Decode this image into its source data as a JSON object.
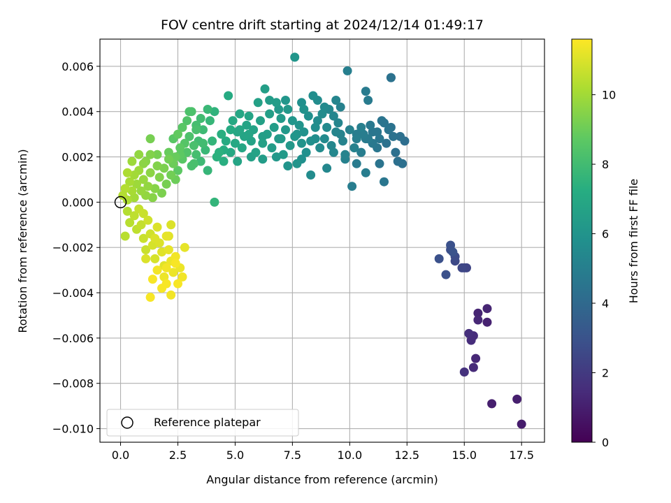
{
  "chart_data": {
    "type": "scatter",
    "title": "FOV centre drift starting at 2024/12/14 01:49:17",
    "xlabel": "Angular distance from reference (arcmin)",
    "ylabel": "Rotation from reference (arcmin)",
    "xlim": [
      -0.9,
      18.5
    ],
    "ylim": [
      -0.0106,
      0.0072
    ],
    "xticks": [
      0.0,
      2.5,
      5.0,
      7.5,
      10.0,
      12.5,
      15.0,
      17.5
    ],
    "xtick_labels": [
      "0.0",
      "2.5",
      "5.0",
      "7.5",
      "10.0",
      "12.5",
      "15.0",
      "17.5"
    ],
    "yticks": [
      0.006,
      0.004,
      0.002,
      0.0,
      -0.002,
      -0.004,
      -0.006,
      -0.008,
      -0.01
    ],
    "ytick_labels": [
      "0.006",
      "0.004",
      "0.002",
      "0.000",
      "−0.002",
      "−0.004",
      "−0.006",
      "−0.008",
      "−0.010"
    ],
    "grid": true,
    "colormap": "viridis",
    "colorbar": {
      "label": "Hours from first FF file",
      "range": [
        0,
        11.6
      ],
      "ticks": [
        0,
        2,
        4,
        6,
        8,
        10
      ],
      "tick_labels": [
        "0",
        "2",
        "4",
        "6",
        "8",
        "10"
      ]
    },
    "reference": {
      "x": 0.0,
      "y": 0.0,
      "label": "Reference platepar"
    },
    "legend_placement": "lower-left",
    "points": [
      [
        17.5,
        -0.0098,
        0.9
      ],
      [
        17.3,
        -0.0087,
        1.0
      ],
      [
        16.2,
        -0.0089,
        1.0
      ],
      [
        16.0,
        -0.0053,
        1.1
      ],
      [
        16.0,
        -0.0047,
        1.2
      ],
      [
        15.6,
        -0.0049,
        1.2
      ],
      [
        15.6,
        -0.0052,
        1.3
      ],
      [
        15.5,
        -0.0069,
        1.3
      ],
      [
        15.4,
        -0.0073,
        1.4
      ],
      [
        15.4,
        -0.0059,
        1.5
      ],
      [
        15.3,
        -0.0061,
        1.5
      ],
      [
        15.2,
        -0.0058,
        1.6
      ],
      [
        15.0,
        -0.0075,
        1.7
      ],
      [
        15.0,
        -0.0029,
        2.4
      ],
      [
        15.1,
        -0.0029,
        2.4
      ],
      [
        14.9,
        -0.0029,
        2.5
      ],
      [
        14.6,
        -0.0026,
        2.6
      ],
      [
        14.6,
        -0.0024,
        2.7
      ],
      [
        14.4,
        -0.0021,
        2.8
      ],
      [
        14.4,
        -0.0019,
        2.9
      ],
      [
        14.2,
        -0.0032,
        2.9
      ],
      [
        13.9,
        -0.0025,
        2.9
      ],
      [
        14.5,
        -0.0022,
        3.0
      ],
      [
        12.4,
        0.0027,
        4.2
      ],
      [
        12.2,
        0.0029,
        4.3
      ],
      [
        12.3,
        0.0017,
        4.3
      ],
      [
        12.1,
        0.0018,
        4.3
      ],
      [
        11.9,
        0.0029,
        4.4
      ],
      [
        11.8,
        0.0055,
        4.4
      ],
      [
        11.8,
        0.0055,
        4.4
      ],
      [
        11.7,
        0.0032,
        4.5
      ],
      [
        11.5,
        0.0035,
        4.5
      ],
      [
        11.4,
        0.0036,
        4.5
      ],
      [
        11.3,
        0.0028,
        4.6
      ],
      [
        11.2,
        0.0024,
        4.6
      ],
      [
        11.0,
        0.0031,
        4.6
      ],
      [
        11.0,
        0.0026,
        4.7
      ],
      [
        10.9,
        0.0034,
        4.7
      ],
      [
        10.8,
        0.0028,
        4.8
      ],
      [
        10.8,
        0.0045,
        4.8
      ],
      [
        10.7,
        0.0049,
        4.8
      ],
      [
        10.5,
        0.0022,
        4.9
      ],
      [
        10.6,
        0.003,
        4.9
      ],
      [
        11.5,
        0.0009,
        4.6
      ],
      [
        11.3,
        0.0017,
        4.5
      ],
      [
        10.1,
        0.0007,
        4.9
      ],
      [
        10.3,
        0.0017,
        4.8
      ],
      [
        10.7,
        0.0013,
        4.9
      ],
      [
        10.5,
        0.0033,
        5.0
      ],
      [
        10.3,
        0.0028,
        5.0
      ],
      [
        10.2,
        0.0024,
        5.1
      ],
      [
        10.0,
        0.0032,
        5.1
      ],
      [
        9.9,
        0.0058,
        5.0
      ],
      [
        9.8,
        0.0021,
        5.2
      ],
      [
        9.7,
        0.0027,
        5.2
      ],
      [
        9.6,
        0.003,
        5.2
      ],
      [
        9.5,
        0.0035,
        5.3
      ],
      [
        9.4,
        0.0045,
        5.3
      ],
      [
        9.3,
        0.0022,
        5.4
      ],
      [
        9.2,
        0.0025,
        5.4
      ],
      [
        9.1,
        0.0041,
        5.4
      ],
      [
        9.0,
        0.0033,
        5.5
      ],
      [
        8.9,
        0.0028,
        5.5
      ],
      [
        8.8,
        0.0039,
        5.6
      ],
      [
        8.7,
        0.0024,
        5.6
      ],
      [
        8.6,
        0.0045,
        5.6
      ],
      [
        8.5,
        0.0033,
        5.7
      ],
      [
        8.4,
        0.0047,
        5.7
      ],
      [
        8.3,
        0.0027,
        5.8
      ],
      [
        8.2,
        0.0038,
        5.8
      ],
      [
        8.1,
        0.0022,
        5.8
      ],
      [
        8.0,
        0.0041,
        5.9
      ],
      [
        8.0,
        0.0031,
        5.9
      ],
      [
        7.9,
        0.0026,
        6.0
      ],
      [
        7.8,
        0.0034,
        6.0
      ],
      [
        7.7,
        0.0017,
        6.0
      ],
      [
        7.6,
        0.0064,
        6.1
      ],
      [
        7.6,
        0.0029,
        6.1
      ],
      [
        7.5,
        0.0036,
        6.1
      ],
      [
        7.4,
        0.0025,
        6.2
      ],
      [
        7.3,
        0.0041,
        6.2
      ],
      [
        7.2,
        0.0032,
        6.2
      ],
      [
        7.1,
        0.0021,
        6.3
      ],
      [
        7.0,
        0.0037,
        6.3
      ],
      [
        6.9,
        0.0028,
        6.3
      ],
      [
        6.8,
        0.0044,
        6.4
      ],
      [
        6.7,
        0.0033,
        6.4
      ],
      [
        6.6,
        0.0024,
        6.4
      ],
      [
        6.5,
        0.0039,
        6.5
      ],
      [
        6.4,
        0.003,
        6.5
      ],
      [
        6.3,
        0.005,
        6.5
      ],
      [
        6.2,
        0.0026,
        6.6
      ],
      [
        6.1,
        0.0036,
        6.6
      ],
      [
        6.0,
        0.0044,
        6.6
      ],
      [
        5.9,
        0.0022,
        6.7
      ],
      [
        5.8,
        0.0032,
        6.7
      ],
      [
        5.7,
        0.0027,
        6.7
      ],
      [
        5.6,
        0.0038,
        6.8
      ],
      [
        5.5,
        0.0034,
        6.8
      ],
      [
        5.4,
        0.0029,
        6.8
      ],
      [
        5.3,
        0.0024,
        6.9
      ],
      [
        5.2,
        0.0039,
        6.9
      ],
      [
        5.1,
        0.0031,
        6.9
      ],
      [
        5.0,
        0.0026,
        7.0
      ],
      [
        4.9,
        0.0036,
        7.0
      ],
      [
        4.8,
        0.0022,
        7.0
      ],
      [
        4.8,
        0.0032,
        7.1
      ],
      [
        4.7,
        0.0047,
        7.1
      ],
      [
        4.6,
        0.0027,
        7.1
      ],
      [
        4.5,
        0.0023,
        7.2
      ],
      [
        9.8,
        0.0019,
        5.1
      ],
      [
        9.0,
        0.0015,
        5.4
      ],
      [
        8.3,
        0.0012,
        5.6
      ],
      [
        7.9,
        0.0019,
        5.8
      ],
      [
        7.3,
        0.0016,
        6.0
      ],
      [
        6.8,
        0.002,
        6.2
      ],
      [
        6.2,
        0.0019,
        6.4
      ],
      [
        5.7,
        0.002,
        6.6
      ],
      [
        5.1,
        0.0018,
        6.8
      ],
      [
        9.6,
        0.0042,
        5.1
      ],
      [
        9.3,
        0.0038,
        5.3
      ],
      [
        8.9,
        0.0042,
        5.5
      ],
      [
        8.6,
        0.0036,
        5.6
      ],
      [
        7.9,
        0.0044,
        5.8
      ],
      [
        7.2,
        0.0045,
        6.1
      ],
      [
        6.9,
        0.0041,
        6.2
      ],
      [
        6.5,
        0.0045,
        6.4
      ],
      [
        10.3,
        0.003,
        4.9
      ],
      [
        11.2,
        0.0031,
        4.6
      ],
      [
        11.6,
        0.0026,
        4.4
      ],
      [
        12.0,
        0.0022,
        4.3
      ],
      [
        11.8,
        0.0033,
        4.4
      ],
      [
        10.7,
        0.0028,
        4.8
      ],
      [
        9.4,
        0.0031,
        5.3
      ],
      [
        8.5,
        0.0028,
        5.7
      ],
      [
        7.7,
        0.003,
        6.0
      ],
      [
        7.0,
        0.0028,
        6.3
      ],
      [
        6.2,
        0.0029,
        6.5
      ],
      [
        5.6,
        0.003,
        6.8
      ],
      [
        5.2,
        0.0032,
        6.9
      ],
      [
        4.5,
        0.0018,
        7.3
      ],
      [
        4.4,
        0.003,
        7.3
      ],
      [
        4.3,
        0.0022,
        7.4
      ],
      [
        4.2,
        0.002,
        7.4
      ],
      [
        4.1,
        0.0,
        7.6
      ],
      [
        4.1,
        0.004,
        7.5
      ],
      [
        4.0,
        0.0027,
        7.6
      ],
      [
        3.9,
        0.0036,
        7.7
      ],
      [
        3.8,
        0.0014,
        7.7
      ],
      [
        3.8,
        0.0041,
        7.8
      ],
      [
        3.7,
        0.0023,
        7.8
      ],
      [
        3.6,
        0.0032,
        7.9
      ],
      [
        3.5,
        0.0018,
        7.9
      ],
      [
        3.5,
        0.0037,
        8.0
      ],
      [
        3.4,
        0.0027,
        8.0
      ],
      [
        3.3,
        0.0021,
        8.1
      ],
      [
        3.3,
        0.0034,
        8.1
      ],
      [
        3.2,
        0.0025,
        8.2
      ],
      [
        3.1,
        0.0016,
        8.2
      ],
      [
        3.1,
        0.004,
        8.3
      ],
      [
        3.0,
        0.0029,
        8.3
      ],
      [
        2.9,
        0.0022,
        8.4
      ],
      [
        2.9,
        0.0036,
        8.4
      ],
      [
        2.8,
        0.0026,
        8.5
      ],
      [
        2.7,
        0.0019,
        8.6
      ],
      [
        2.7,
        0.0033,
        8.6
      ],
      [
        2.6,
        0.0024,
        8.7
      ],
      [
        2.5,
        0.0014,
        8.7
      ],
      [
        2.5,
        0.003,
        8.8
      ],
      [
        2.4,
        0.002,
        8.9
      ],
      [
        2.4,
        0.001,
        9.0
      ],
      [
        2.3,
        0.0017,
        9.0
      ],
      [
        2.2,
        0.0012,
        9.1
      ],
      [
        2.1,
        0.0019,
        9.1
      ],
      [
        2.0,
        0.0008,
        9.2
      ],
      [
        1.9,
        0.0015,
        9.3
      ],
      [
        1.8,
        0.0004,
        9.3
      ],
      [
        1.7,
        0.0011,
        9.4
      ],
      [
        1.6,
        0.0016,
        9.4
      ],
      [
        1.5,
        0.0006,
        9.5
      ],
      [
        1.4,
        0.0002,
        9.5
      ],
      [
        1.3,
        0.0013,
        9.6
      ],
      [
        1.3,
        0.0021,
        9.4
      ],
      [
        1.2,
        0.0007,
        9.7
      ],
      [
        1.1,
        0.0003,
        9.7
      ],
      [
        1.0,
        0.0017,
        9.6
      ],
      [
        1.0,
        0.001,
        9.8
      ],
      [
        0.9,
        0.0005,
        9.8
      ],
      [
        0.8,
        0.0014,
        9.9
      ],
      [
        0.8,
        0.0021,
        9.7
      ],
      [
        0.7,
        0.0008,
        9.9
      ],
      [
        0.6,
        0.0002,
        10.0
      ],
      [
        0.6,
        0.0012,
        10.0
      ],
      [
        0.5,
        0.0018,
        9.9
      ],
      [
        0.5,
        0.0005,
        10.1
      ],
      [
        0.4,
        0.0009,
        10.1
      ],
      [
        0.3,
        0.0001,
        10.2
      ],
      [
        0.3,
        0.0013,
        10.2
      ],
      [
        0.2,
        0.0006,
        10.3
      ],
      [
        0.1,
        0.0003,
        10.3
      ],
      [
        1.3,
        0.0028,
        9.2
      ],
      [
        2.3,
        0.0028,
        8.6
      ],
      [
        3.0,
        0.004,
        8.3
      ],
      [
        3.3,
        0.0032,
        8.2
      ],
      [
        2.1,
        0.0022,
        8.9
      ],
      [
        1.6,
        0.0021,
        9.2
      ],
      [
        1.1,
        0.0018,
        9.5
      ],
      [
        2.6,
        0.0021,
        8.7
      ],
      [
        3.6,
        0.0026,
        8.0
      ],
      [
        3.2,
        0.0017,
        8.2
      ],
      [
        0.3,
        -0.0004,
        10.3
      ],
      [
        0.4,
        -0.0009,
        10.4
      ],
      [
        0.2,
        -0.0015,
        10.4
      ],
      [
        0.6,
        -0.0006,
        10.5
      ],
      [
        0.7,
        -0.0012,
        10.5
      ],
      [
        0.8,
        -0.0003,
        10.6
      ],
      [
        0.9,
        -0.001,
        10.6
      ],
      [
        1.0,
        -0.0016,
        10.7
      ],
      [
        1.1,
        -0.0021,
        10.7
      ],
      [
        1.2,
        -0.0008,
        10.8
      ],
      [
        1.3,
        -0.0014,
        10.8
      ],
      [
        1.4,
        -0.0019,
        10.9
      ],
      [
        1.5,
        -0.0025,
        10.9
      ],
      [
        1.6,
        -0.0011,
        11.0
      ],
      [
        1.7,
        -0.0018,
        11.0
      ],
      [
        1.8,
        -0.0022,
        11.1
      ],
      [
        1.9,
        -0.0028,
        11.1
      ],
      [
        2.0,
        -0.0015,
        11.2
      ],
      [
        2.1,
        -0.0021,
        11.2
      ],
      [
        2.2,
        -0.0026,
        11.3
      ],
      [
        2.3,
        -0.0031,
        11.3
      ],
      [
        2.4,
        -0.0024,
        11.4
      ],
      [
        2.2,
        -0.0041,
        11.4
      ],
      [
        2.0,
        -0.0036,
        11.5
      ],
      [
        1.8,
        -0.0038,
        11.5
      ],
      [
        1.4,
        -0.0034,
        11.5
      ],
      [
        1.3,
        -0.0042,
        11.5
      ],
      [
        1.6,
        -0.003,
        11.4
      ],
      [
        2.5,
        -0.0036,
        11.5
      ],
      [
        2.8,
        -0.002,
        11.2
      ],
      [
        2.6,
        -0.0029,
        11.3
      ],
      [
        2.7,
        -0.0033,
        11.4
      ],
      [
        2.1,
        -0.0015,
        11.1
      ],
      [
        2.2,
        -0.001,
        11.0
      ],
      [
        1.1,
        -0.0025,
        11.0
      ],
      [
        1.5,
        -0.0016,
        11.0
      ],
      [
        1.0,
        -0.0005,
        10.7
      ],
      [
        1.9,
        -0.0033,
        11.3
      ],
      [
        2.4,
        -0.0027,
        11.5
      ],
      [
        2.0,
        -0.0029,
        11.4
      ]
    ]
  }
}
